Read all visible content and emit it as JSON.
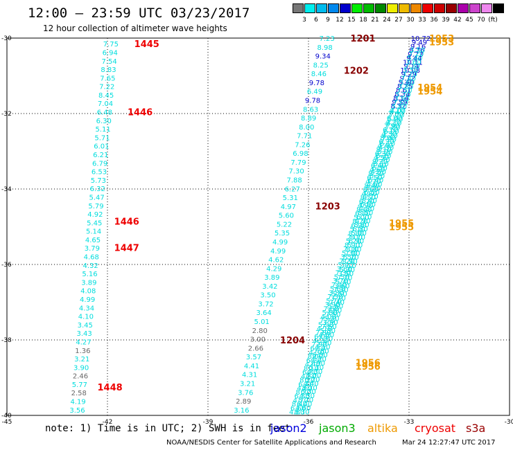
{
  "title": "12:00 – 23:59 UTC 03/23/2017",
  "subtitle": "12 hour collection of altimeter wave heights",
  "color_scale": {
    "colors": [
      "#777777",
      "#00eeee",
      "#00bbee",
      "#0088ee",
      "#0000cc",
      "#00ee00",
      "#00bb00",
      "#008800",
      "#eeee00",
      "#eebb00",
      "#ee8800",
      "#ee0000",
      "#cc0000",
      "#990000",
      "#aa00aa",
      "#cc44cc",
      "#ee88ee",
      "#000000"
    ],
    "labels": [
      "3",
      "6",
      "9",
      "12",
      "15",
      "18",
      "21",
      "24",
      "27",
      "30",
      "33",
      "36",
      "39",
      "42",
      "45",
      "70",
      "(ft)"
    ]
  },
  "axes": {
    "lon_ticks": [
      "-45",
      "-42",
      "-39",
      "-36",
      "-33",
      "-30"
    ],
    "lat_ticks": [
      "-30",
      "-32",
      "-34",
      "-36",
      "-38",
      "-40"
    ]
  },
  "chart_data": {
    "type": "scatter",
    "lon_range": [
      -45,
      -30
    ],
    "lat_range": [
      -40,
      -30
    ],
    "units": "ft",
    "time_labels": [
      {
        "text": "1445",
        "lon": -41.2,
        "lat": -30.15,
        "color": "#ee0000"
      },
      {
        "text": "1446",
        "lon": -41.4,
        "lat": -31.95,
        "color": "#ee0000"
      },
      {
        "text": "1446",
        "lon": -41.8,
        "lat": -34.85,
        "color": "#ee0000"
      },
      {
        "text": "1447",
        "lon": -41.8,
        "lat": -35.55,
        "color": "#ee0000"
      },
      {
        "text": "1448",
        "lon": -42.3,
        "lat": -39.25,
        "color": "#ee0000"
      },
      {
        "text": "1201",
        "lon": -34.75,
        "lat": -30.0,
        "color": "#880000"
      },
      {
        "text": "1202",
        "lon": -34.95,
        "lat": -30.85,
        "color": "#880000"
      },
      {
        "text": "1203",
        "lon": -35.8,
        "lat": -34.45,
        "color": "#880000"
      },
      {
        "text": "1204",
        "lon": -36.85,
        "lat": -38.0,
        "color": "#880000"
      },
      {
        "text": "1953",
        "lon": -32.4,
        "lat": -30.0,
        "color": "#ee9900"
      },
      {
        "text": "1953",
        "lon": -32.4,
        "lat": -30.1,
        "color": "#ee9900"
      },
      {
        "text": "1954",
        "lon": -32.75,
        "lat": -31.3,
        "color": "#ee9900"
      },
      {
        "text": "1954",
        "lon": -32.75,
        "lat": -31.4,
        "color": "#ee9900"
      },
      {
        "text": "1955",
        "lon": -33.6,
        "lat": -34.9,
        "color": "#ee9900"
      },
      {
        "text": "1955",
        "lon": -33.6,
        "lat": -35.0,
        "color": "#ee9900"
      },
      {
        "text": "1956",
        "lon": -34.6,
        "lat": -38.6,
        "color": "#ee9900"
      },
      {
        "text": "1956",
        "lon": -34.6,
        "lat": -38.7,
        "color": "#ee9900"
      }
    ],
    "tracks": [
      {
        "lon_start": -41.9,
        "lon_end": -42.9,
        "lat_start": -30.15,
        "lat_end": -39.85,
        "values": [
          "7.75",
          "6.94",
          "7.54",
          "8.83",
          "7.65",
          "7.22",
          "8.45",
          "7.04",
          "6.48",
          "6.30",
          "5.11",
          "5.71",
          "6.01",
          "6.21",
          "6.79",
          "6.53",
          "5.73",
          "6.32",
          "5.47",
          "5.79",
          "4.92",
          "5.45",
          "5.14",
          "4.65",
          "3.79",
          "4.68",
          "4.32",
          "5.16",
          "3.89",
          "4.08",
          "4.99",
          "4.34",
          "4.10",
          "3.45",
          "3.43",
          "4.27",
          "1.36",
          "3.21",
          "3.90",
          "2.46",
          "5.77",
          "2.58",
          "4.19",
          "3.56"
        ],
        "colors": [
          "c",
          "c",
          "c",
          "c",
          "c",
          "c",
          "c",
          "c",
          "c",
          "c",
          "c",
          "c",
          "c",
          "c",
          "c",
          "c",
          "c",
          "c",
          "c",
          "c",
          "c",
          "c",
          "c",
          "c",
          "c",
          "c",
          "c",
          "c",
          "c",
          "c",
          "c",
          "c",
          "c",
          "c",
          "c",
          "c",
          "g",
          "c",
          "c",
          "g",
          "c",
          "g",
          "c",
          "c"
        ]
      },
      {
        "lon_start": -35.45,
        "lon_end": -38.0,
        "lat_start": -30.0,
        "lat_end": -39.85,
        "values": [
          "7.23",
          "8.98",
          "9.34",
          "8.25",
          "8.46",
          "9.78",
          "6.49",
          "9.78",
          "8.63",
          "8.89",
          "8.00",
          "7.71",
          "7.26",
          "6.98",
          "7.79",
          "7.30",
          "7.88",
          "6.27",
          "5.31",
          "4.97",
          "5.60",
          "5.22",
          "5.35",
          "4.99",
          "4.99",
          "4.62",
          "4.29",
          "3.89",
          "3.42",
          "3.50",
          "3.72",
          "3.64",
          "5.01",
          "2.80",
          "3.00",
          "2.66",
          "3.57",
          "4.41",
          "4.31",
          "3.21",
          "3.76",
          "2.89",
          "3.16"
        ],
        "colors": [
          "c",
          "c",
          "b",
          "c",
          "c",
          "b",
          "c",
          "b",
          "c",
          "c",
          "c",
          "c",
          "c",
          "c",
          "c",
          "c",
          "c",
          "c",
          "c",
          "c",
          "c",
          "c",
          "c",
          "c",
          "c",
          "c",
          "c",
          "c",
          "c",
          "c",
          "c",
          "c",
          "c",
          "g",
          "g",
          "g",
          "c",
          "c",
          "c",
          "c",
          "c",
          "g",
          "c"
        ]
      }
    ],
    "dense_tracks": [
      {
        "lon_start": -32.65,
        "lon_end": -36.35,
        "lat_start": -30.0,
        "lat_end": -39.9,
        "top_values": [
          "10.72",
          "9.49",
          "9.16",
          "8.76",
          "9.73",
          "9.44",
          "10.11",
          "9.14",
          "10.08",
          "9.29",
          "9.12",
          "9.40",
          "8.75",
          "8.61",
          "8.34",
          "8.14",
          "9.59",
          "8.32"
        ],
        "top_color": "#0000cc",
        "color": "#00dddd",
        "count": 95
      },
      {
        "lon_start": -32.75,
        "lon_end": -36.2,
        "lat_start": -30.3,
        "lat_end": -39.9,
        "color": "#00dddd",
        "count": 90
      }
    ]
  },
  "note": "note: 1) Time is in UTC; 2) SWH is in feet",
  "legend": [
    {
      "label": "jason2",
      "color": "#0000dd"
    },
    {
      "label": "jason3",
      "color": "#00aa00"
    },
    {
      "label": "altika",
      "color": "#ee9900"
    },
    {
      "label": "cryosat",
      "color": "#ee0000"
    },
    {
      "label": "s3a",
      "color": "#990000"
    }
  ],
  "footer_left": "NOAA/NESDIS Center for Satellite Applications and Research",
  "footer_right": "Mar 24 12:27:47 UTC 2017"
}
